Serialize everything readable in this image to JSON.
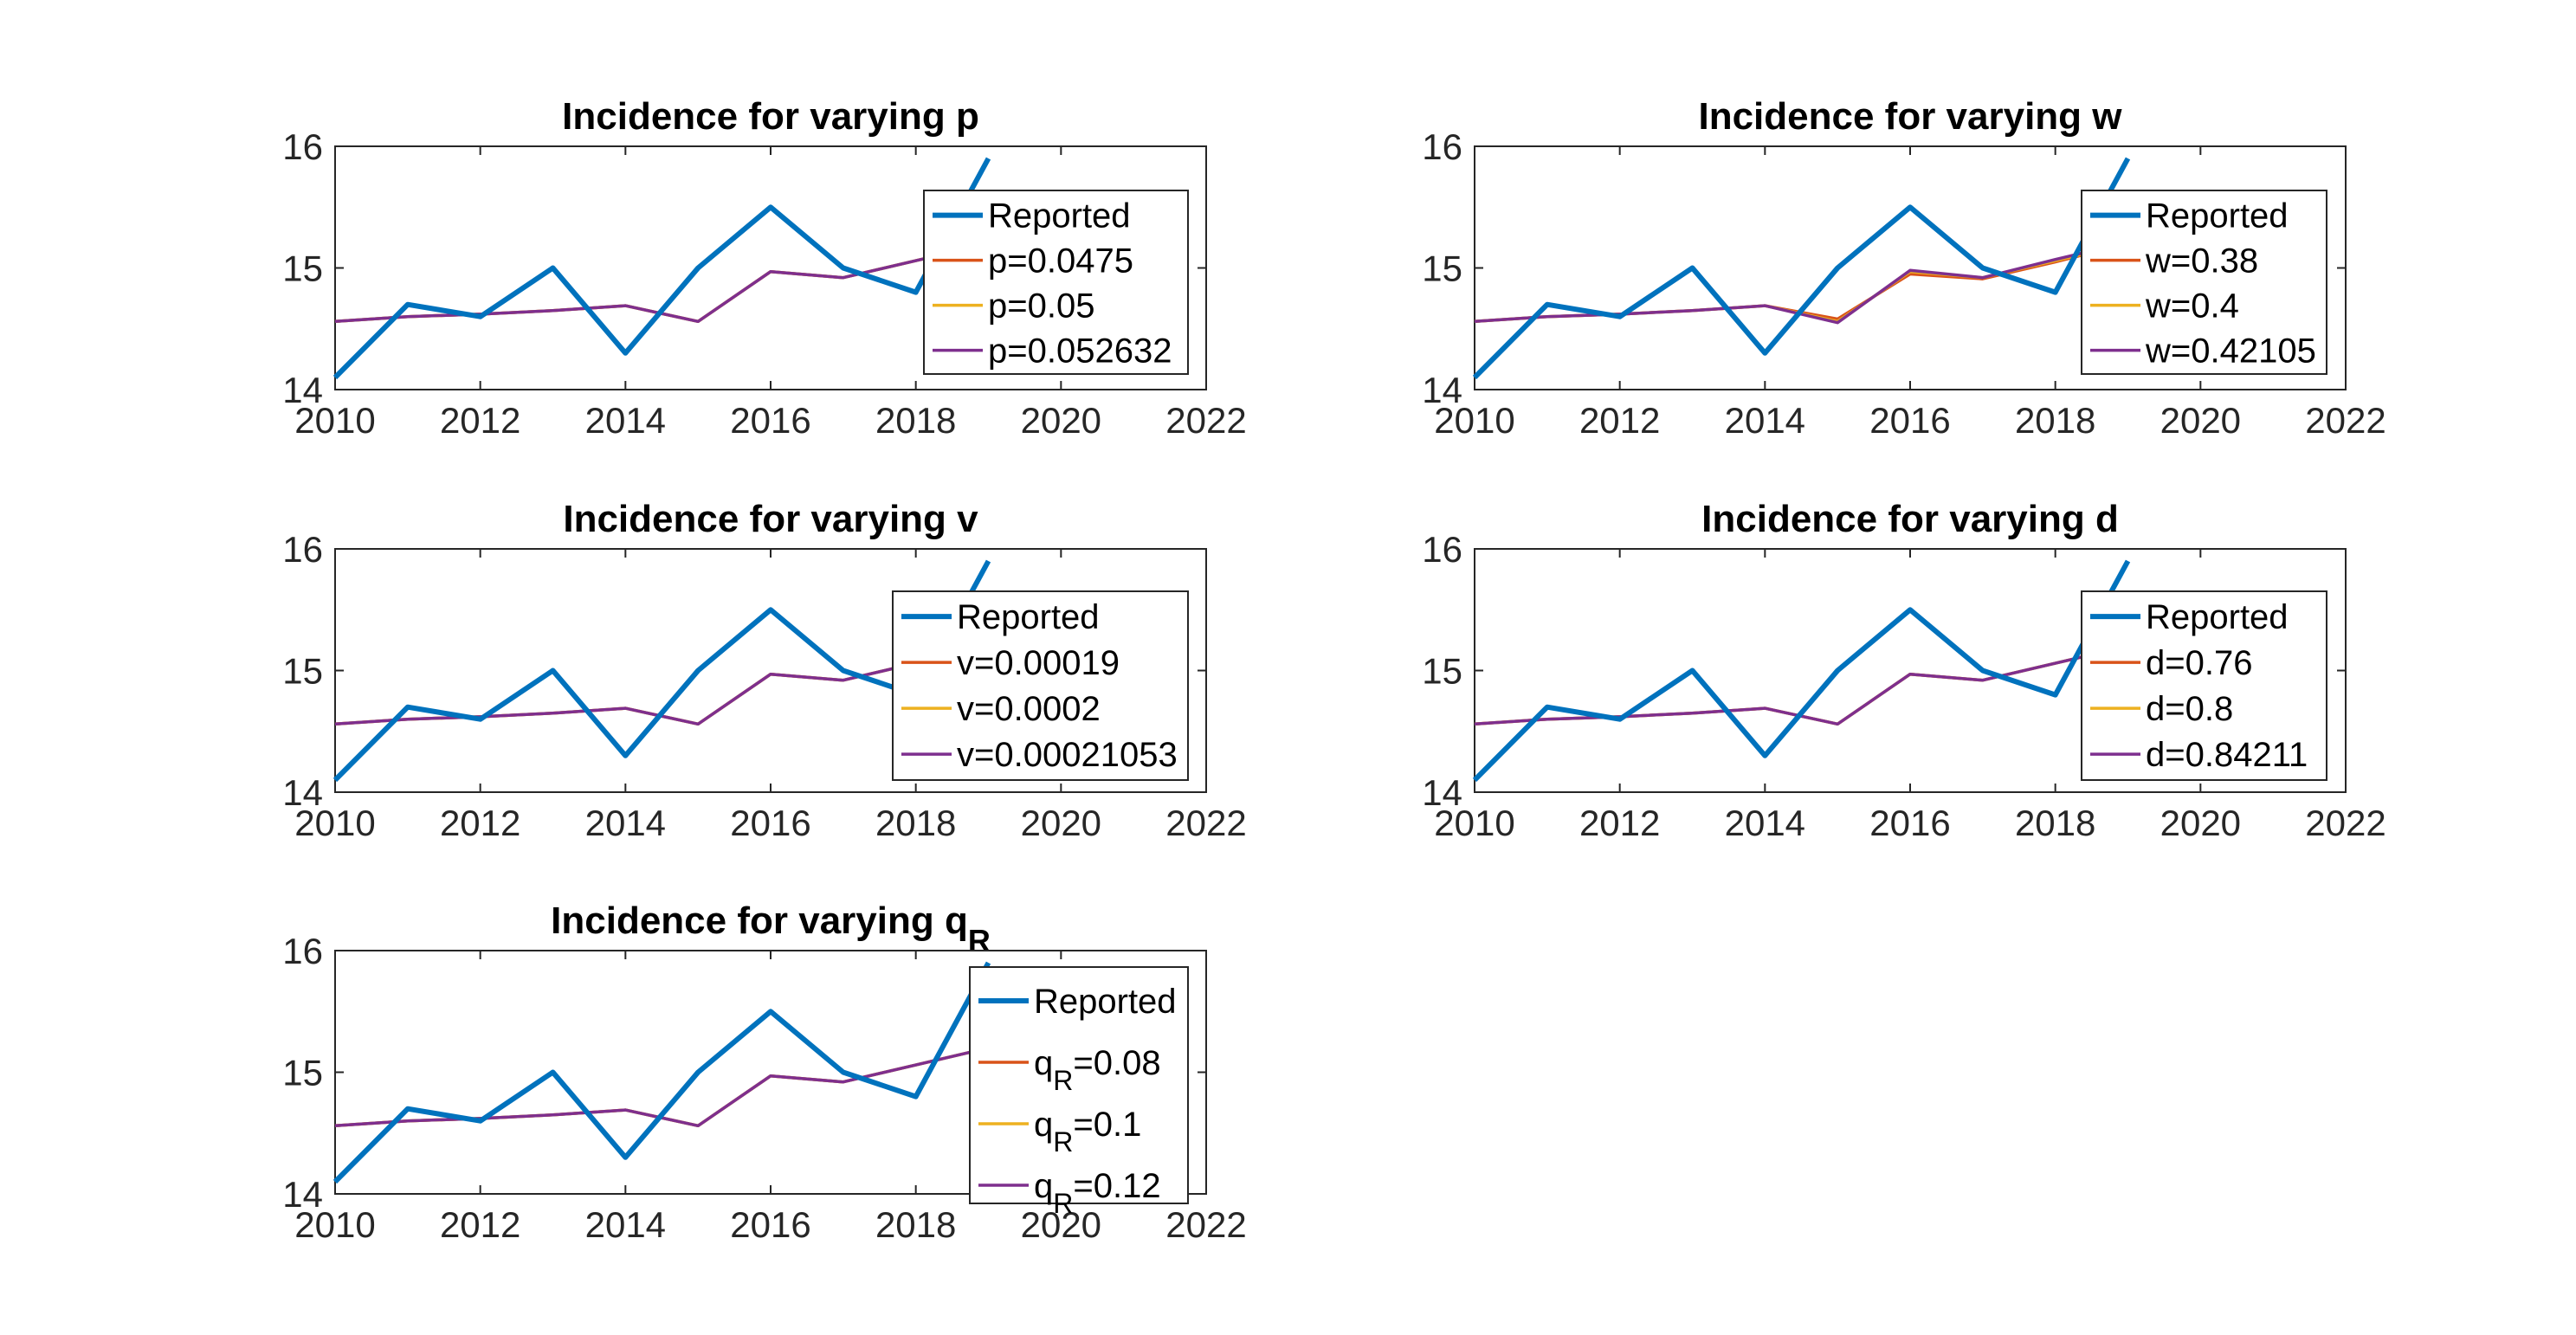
{
  "figure": {
    "background": "#ffffff",
    "axis_color": "#262626",
    "grid": false
  },
  "chart_data": [
    {
      "type": "line",
      "title": "Incidence for varying p",
      "title_sub": "",
      "xlim": [
        2010,
        2022
      ],
      "ylim": [
        14,
        16
      ],
      "xticks": [
        2010,
        2012,
        2014,
        2016,
        2018,
        2020,
        2022
      ],
      "yticks": [
        14,
        15,
        16
      ],
      "legend_position": "top-right",
      "series": [
        {
          "name": "Reported",
          "color": "#0072BD",
          "x": [
            2010,
            2011,
            2012,
            2013,
            2014,
            2015,
            2016,
            2017,
            2018,
            2019
          ],
          "y": [
            14.1,
            14.7,
            14.6,
            15.0,
            14.3,
            15.0,
            15.5,
            15.0,
            14.8,
            15.9
          ]
        },
        {
          "name": "p=0.0475",
          "color": "#D95319",
          "x": [
            2010,
            2011,
            2012,
            2013,
            2014,
            2015,
            2016,
            2017,
            2018,
            2019
          ],
          "y": [
            14.56,
            14.6,
            14.62,
            14.65,
            14.69,
            14.56,
            14.97,
            14.92,
            15.06,
            15.2
          ]
        },
        {
          "name": "p=0.05",
          "color": "#EDB120",
          "x": [
            2010,
            2011,
            2012,
            2013,
            2014,
            2015,
            2016,
            2017,
            2018,
            2019
          ],
          "y": [
            14.56,
            14.6,
            14.62,
            14.65,
            14.69,
            14.56,
            14.97,
            14.92,
            15.06,
            15.2
          ]
        },
        {
          "name": "p=0.052632",
          "color": "#7E2F8E",
          "x": [
            2010,
            2011,
            2012,
            2013,
            2014,
            2015,
            2016,
            2017,
            2018,
            2019
          ],
          "y": [
            14.56,
            14.6,
            14.62,
            14.65,
            14.69,
            14.56,
            14.97,
            14.92,
            15.06,
            15.2
          ]
        }
      ]
    },
    {
      "type": "line",
      "title": "Incidence for varying w",
      "title_sub": "",
      "xlim": [
        2010,
        2022
      ],
      "ylim": [
        14,
        16
      ],
      "xticks": [
        2010,
        2012,
        2014,
        2016,
        2018,
        2020,
        2022
      ],
      "yticks": [
        14,
        15,
        16
      ],
      "legend_position": "top-right",
      "series": [
        {
          "name": "Reported",
          "color": "#0072BD",
          "x": [
            2010,
            2011,
            2012,
            2013,
            2014,
            2015,
            2016,
            2017,
            2018,
            2019
          ],
          "y": [
            14.1,
            14.7,
            14.6,
            15.0,
            14.3,
            15.0,
            15.5,
            15.0,
            14.8,
            15.9
          ]
        },
        {
          "name": "w=0.38",
          "color": "#D95319",
          "x": [
            2010,
            2011,
            2012,
            2013,
            2014,
            2015,
            2016,
            2017,
            2018,
            2019
          ],
          "y": [
            14.56,
            14.6,
            14.62,
            14.65,
            14.69,
            14.58,
            14.95,
            14.91,
            15.05,
            15.2
          ]
        },
        {
          "name": "w=0.4",
          "color": "#EDB120",
          "x": [
            2010,
            2011,
            2012,
            2013,
            2014,
            2015,
            2016,
            2017,
            2018,
            2019
          ],
          "y": [
            14.56,
            14.6,
            14.62,
            14.65,
            14.69,
            14.56,
            14.97,
            14.92,
            15.06,
            15.2
          ]
        },
        {
          "name": "w=0.42105",
          "color": "#7E2F8E",
          "x": [
            2010,
            2011,
            2012,
            2013,
            2014,
            2015,
            2016,
            2017,
            2018,
            2019
          ],
          "y": [
            14.56,
            14.6,
            14.62,
            14.65,
            14.69,
            14.55,
            14.98,
            14.92,
            15.07,
            15.21
          ]
        }
      ]
    },
    {
      "type": "line",
      "title": "Incidence for varying v",
      "title_sub": "",
      "xlim": [
        2010,
        2022
      ],
      "ylim": [
        14,
        16
      ],
      "xticks": [
        2010,
        2012,
        2014,
        2016,
        2018,
        2020,
        2022
      ],
      "yticks": [
        14,
        15,
        16
      ],
      "legend_position": "top-right",
      "series": [
        {
          "name": "Reported",
          "color": "#0072BD",
          "x": [
            2010,
            2011,
            2012,
            2013,
            2014,
            2015,
            2016,
            2017,
            2018,
            2019
          ],
          "y": [
            14.1,
            14.7,
            14.6,
            15.0,
            14.3,
            15.0,
            15.5,
            15.0,
            14.8,
            15.9
          ]
        },
        {
          "name": "v=0.00019",
          "color": "#D95319",
          "x": [
            2010,
            2011,
            2012,
            2013,
            2014,
            2015,
            2016,
            2017,
            2018,
            2019
          ],
          "y": [
            14.56,
            14.6,
            14.62,
            14.65,
            14.69,
            14.56,
            14.97,
            14.92,
            15.06,
            15.2
          ]
        },
        {
          "name": "v=0.0002",
          "color": "#EDB120",
          "x": [
            2010,
            2011,
            2012,
            2013,
            2014,
            2015,
            2016,
            2017,
            2018,
            2019
          ],
          "y": [
            14.56,
            14.6,
            14.62,
            14.65,
            14.69,
            14.56,
            14.97,
            14.92,
            15.06,
            15.2
          ]
        },
        {
          "name": "v=0.00021053",
          "color": "#7E2F8E",
          "x": [
            2010,
            2011,
            2012,
            2013,
            2014,
            2015,
            2016,
            2017,
            2018,
            2019
          ],
          "y": [
            14.56,
            14.6,
            14.62,
            14.65,
            14.69,
            14.56,
            14.97,
            14.92,
            15.06,
            15.2
          ]
        }
      ]
    },
    {
      "type": "line",
      "title": "Incidence for varying d",
      "title_sub": "",
      "xlim": [
        2010,
        2022
      ],
      "ylim": [
        14,
        16
      ],
      "xticks": [
        2010,
        2012,
        2014,
        2016,
        2018,
        2020,
        2022
      ],
      "yticks": [
        14,
        15,
        16
      ],
      "legend_position": "top-right",
      "series": [
        {
          "name": "Reported",
          "color": "#0072BD",
          "x": [
            2010,
            2011,
            2012,
            2013,
            2014,
            2015,
            2016,
            2017,
            2018,
            2019
          ],
          "y": [
            14.1,
            14.7,
            14.6,
            15.0,
            14.3,
            15.0,
            15.5,
            15.0,
            14.8,
            15.9
          ]
        },
        {
          "name": "d=0.76",
          "color": "#D95319",
          "x": [
            2010,
            2011,
            2012,
            2013,
            2014,
            2015,
            2016,
            2017,
            2018,
            2019
          ],
          "y": [
            14.56,
            14.6,
            14.62,
            14.65,
            14.69,
            14.56,
            14.97,
            14.92,
            15.06,
            15.2
          ]
        },
        {
          "name": "d=0.8",
          "color": "#EDB120",
          "x": [
            2010,
            2011,
            2012,
            2013,
            2014,
            2015,
            2016,
            2017,
            2018,
            2019
          ],
          "y": [
            14.56,
            14.6,
            14.62,
            14.65,
            14.69,
            14.56,
            14.97,
            14.92,
            15.06,
            15.2
          ]
        },
        {
          "name": "d=0.84211",
          "color": "#7E2F8E",
          "x": [
            2010,
            2011,
            2012,
            2013,
            2014,
            2015,
            2016,
            2017,
            2018,
            2019
          ],
          "y": [
            14.56,
            14.6,
            14.62,
            14.65,
            14.69,
            14.56,
            14.97,
            14.92,
            15.06,
            15.2
          ]
        }
      ]
    },
    {
      "type": "line",
      "title": "Incidence for varying q",
      "title_sub": "R",
      "xlim": [
        2010,
        2022
      ],
      "ylim": [
        14,
        16
      ],
      "xticks": [
        2010,
        2012,
        2014,
        2016,
        2018,
        2020,
        2022
      ],
      "yticks": [
        14,
        15,
        16
      ],
      "legend_position": "top-right",
      "series": [
        {
          "name": "Reported",
          "name_sub": "",
          "name_tail": "",
          "color": "#0072BD",
          "x": [
            2010,
            2011,
            2012,
            2013,
            2014,
            2015,
            2016,
            2017,
            2018,
            2019
          ],
          "y": [
            14.1,
            14.7,
            14.6,
            15.0,
            14.3,
            15.0,
            15.5,
            15.0,
            14.8,
            15.9
          ]
        },
        {
          "name": "q",
          "name_sub": "R",
          "name_tail": "=0.08",
          "color": "#D95319",
          "x": [
            2010,
            2011,
            2012,
            2013,
            2014,
            2015,
            2016,
            2017,
            2018,
            2019
          ],
          "y": [
            14.56,
            14.6,
            14.62,
            14.65,
            14.69,
            14.56,
            14.97,
            14.92,
            15.06,
            15.2
          ]
        },
        {
          "name": "q",
          "name_sub": "R",
          "name_tail": "=0.1",
          "color": "#EDB120",
          "x": [
            2010,
            2011,
            2012,
            2013,
            2014,
            2015,
            2016,
            2017,
            2018,
            2019
          ],
          "y": [
            14.56,
            14.6,
            14.62,
            14.65,
            14.69,
            14.56,
            14.97,
            14.92,
            15.06,
            15.2
          ]
        },
        {
          "name": "q",
          "name_sub": "R",
          "name_tail": "=0.12",
          "color": "#7E2F8E",
          "x": [
            2010,
            2011,
            2012,
            2013,
            2014,
            2015,
            2016,
            2017,
            2018,
            2019
          ],
          "y": [
            14.56,
            14.6,
            14.62,
            14.65,
            14.69,
            14.56,
            14.97,
            14.92,
            15.06,
            15.2
          ]
        }
      ]
    }
  ]
}
